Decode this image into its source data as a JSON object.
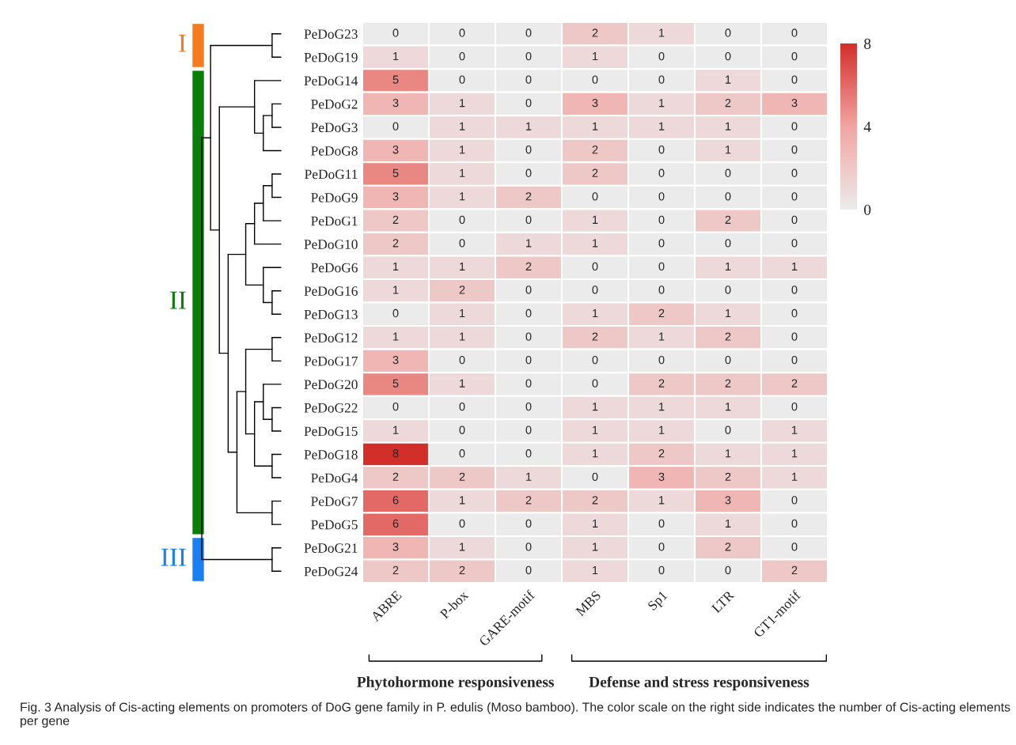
{
  "chart_data": {
    "type": "heatmap",
    "categories": [
      "ABRE",
      "P-box",
      "GARE-motif",
      "MBS",
      "Sp1",
      "LTR",
      "GT1-motif"
    ],
    "y_categories": [
      "PeDoG23",
      "PeDoG19",
      "PeDoG14",
      "PeDoG2",
      "PeDoG3",
      "PeDoG8",
      "PeDoG11",
      "PeDoG9",
      "PeDoG1",
      "PeDoG10",
      "PeDoG6",
      "PeDoG16",
      "PeDoG13",
      "PeDoG12",
      "PeDoG17",
      "PeDoG20",
      "PeDoG22",
      "PeDoG15",
      "PeDoG18",
      "PeDoG4",
      "PeDoG7",
      "PeDoG5",
      "PeDoG21",
      "PeDoG24"
    ],
    "cells": [
      [
        0,
        0,
        0,
        2,
        1,
        0,
        0
      ],
      [
        1,
        0,
        0,
        1,
        0,
        0,
        0
      ],
      [
        5,
        0,
        0,
        0,
        0,
        1,
        0
      ],
      [
        3,
        1,
        0,
        3,
        1,
        2,
        3
      ],
      [
        0,
        1,
        1,
        1,
        1,
        1,
        0
      ],
      [
        3,
        1,
        0,
        2,
        0,
        1,
        0
      ],
      [
        5,
        1,
        0,
        2,
        0,
        0,
        0
      ],
      [
        3,
        1,
        2,
        0,
        0,
        0,
        0
      ],
      [
        2,
        0,
        0,
        1,
        0,
        2,
        0
      ],
      [
        2,
        0,
        1,
        1,
        0,
        0,
        0
      ],
      [
        1,
        1,
        2,
        0,
        0,
        1,
        1
      ],
      [
        1,
        2,
        0,
        0,
        0,
        0,
        0
      ],
      [
        0,
        1,
        0,
        1,
        2,
        1,
        0
      ],
      [
        1,
        1,
        0,
        2,
        1,
        2,
        0
      ],
      [
        3,
        0,
        0,
        0,
        0,
        0,
        0
      ],
      [
        5,
        1,
        0,
        0,
        2,
        2,
        2
      ],
      [
        0,
        0,
        0,
        1,
        1,
        1,
        0
      ],
      [
        1,
        0,
        0,
        1,
        1,
        0,
        1
      ],
      [
        8,
        0,
        0,
        1,
        2,
        1,
        1
      ],
      [
        2,
        2,
        1,
        0,
        3,
        2,
        1
      ],
      [
        6,
        1,
        2,
        2,
        1,
        3,
        0
      ],
      [
        6,
        0,
        0,
        1,
        0,
        1,
        0
      ],
      [
        3,
        1,
        0,
        1,
        0,
        2,
        0
      ],
      [
        2,
        2,
        0,
        1,
        0,
        0,
        2
      ]
    ],
    "clim": [
      0,
      8
    ],
    "cticks": [
      0,
      4,
      8
    ],
    "data_labels": true,
    "annotations": [
      "I",
      "II",
      "III",
      "Phytohormone responsiveness",
      "Defense and stress responsiveness",
      "Fig. 3 Analysis of Cis-acting elements on promoters of DoG gene family in P. edulis (Moso bamboo). The color scale on the right side indicates the number of Cis-acting elements per gene"
    ]
  }
}
